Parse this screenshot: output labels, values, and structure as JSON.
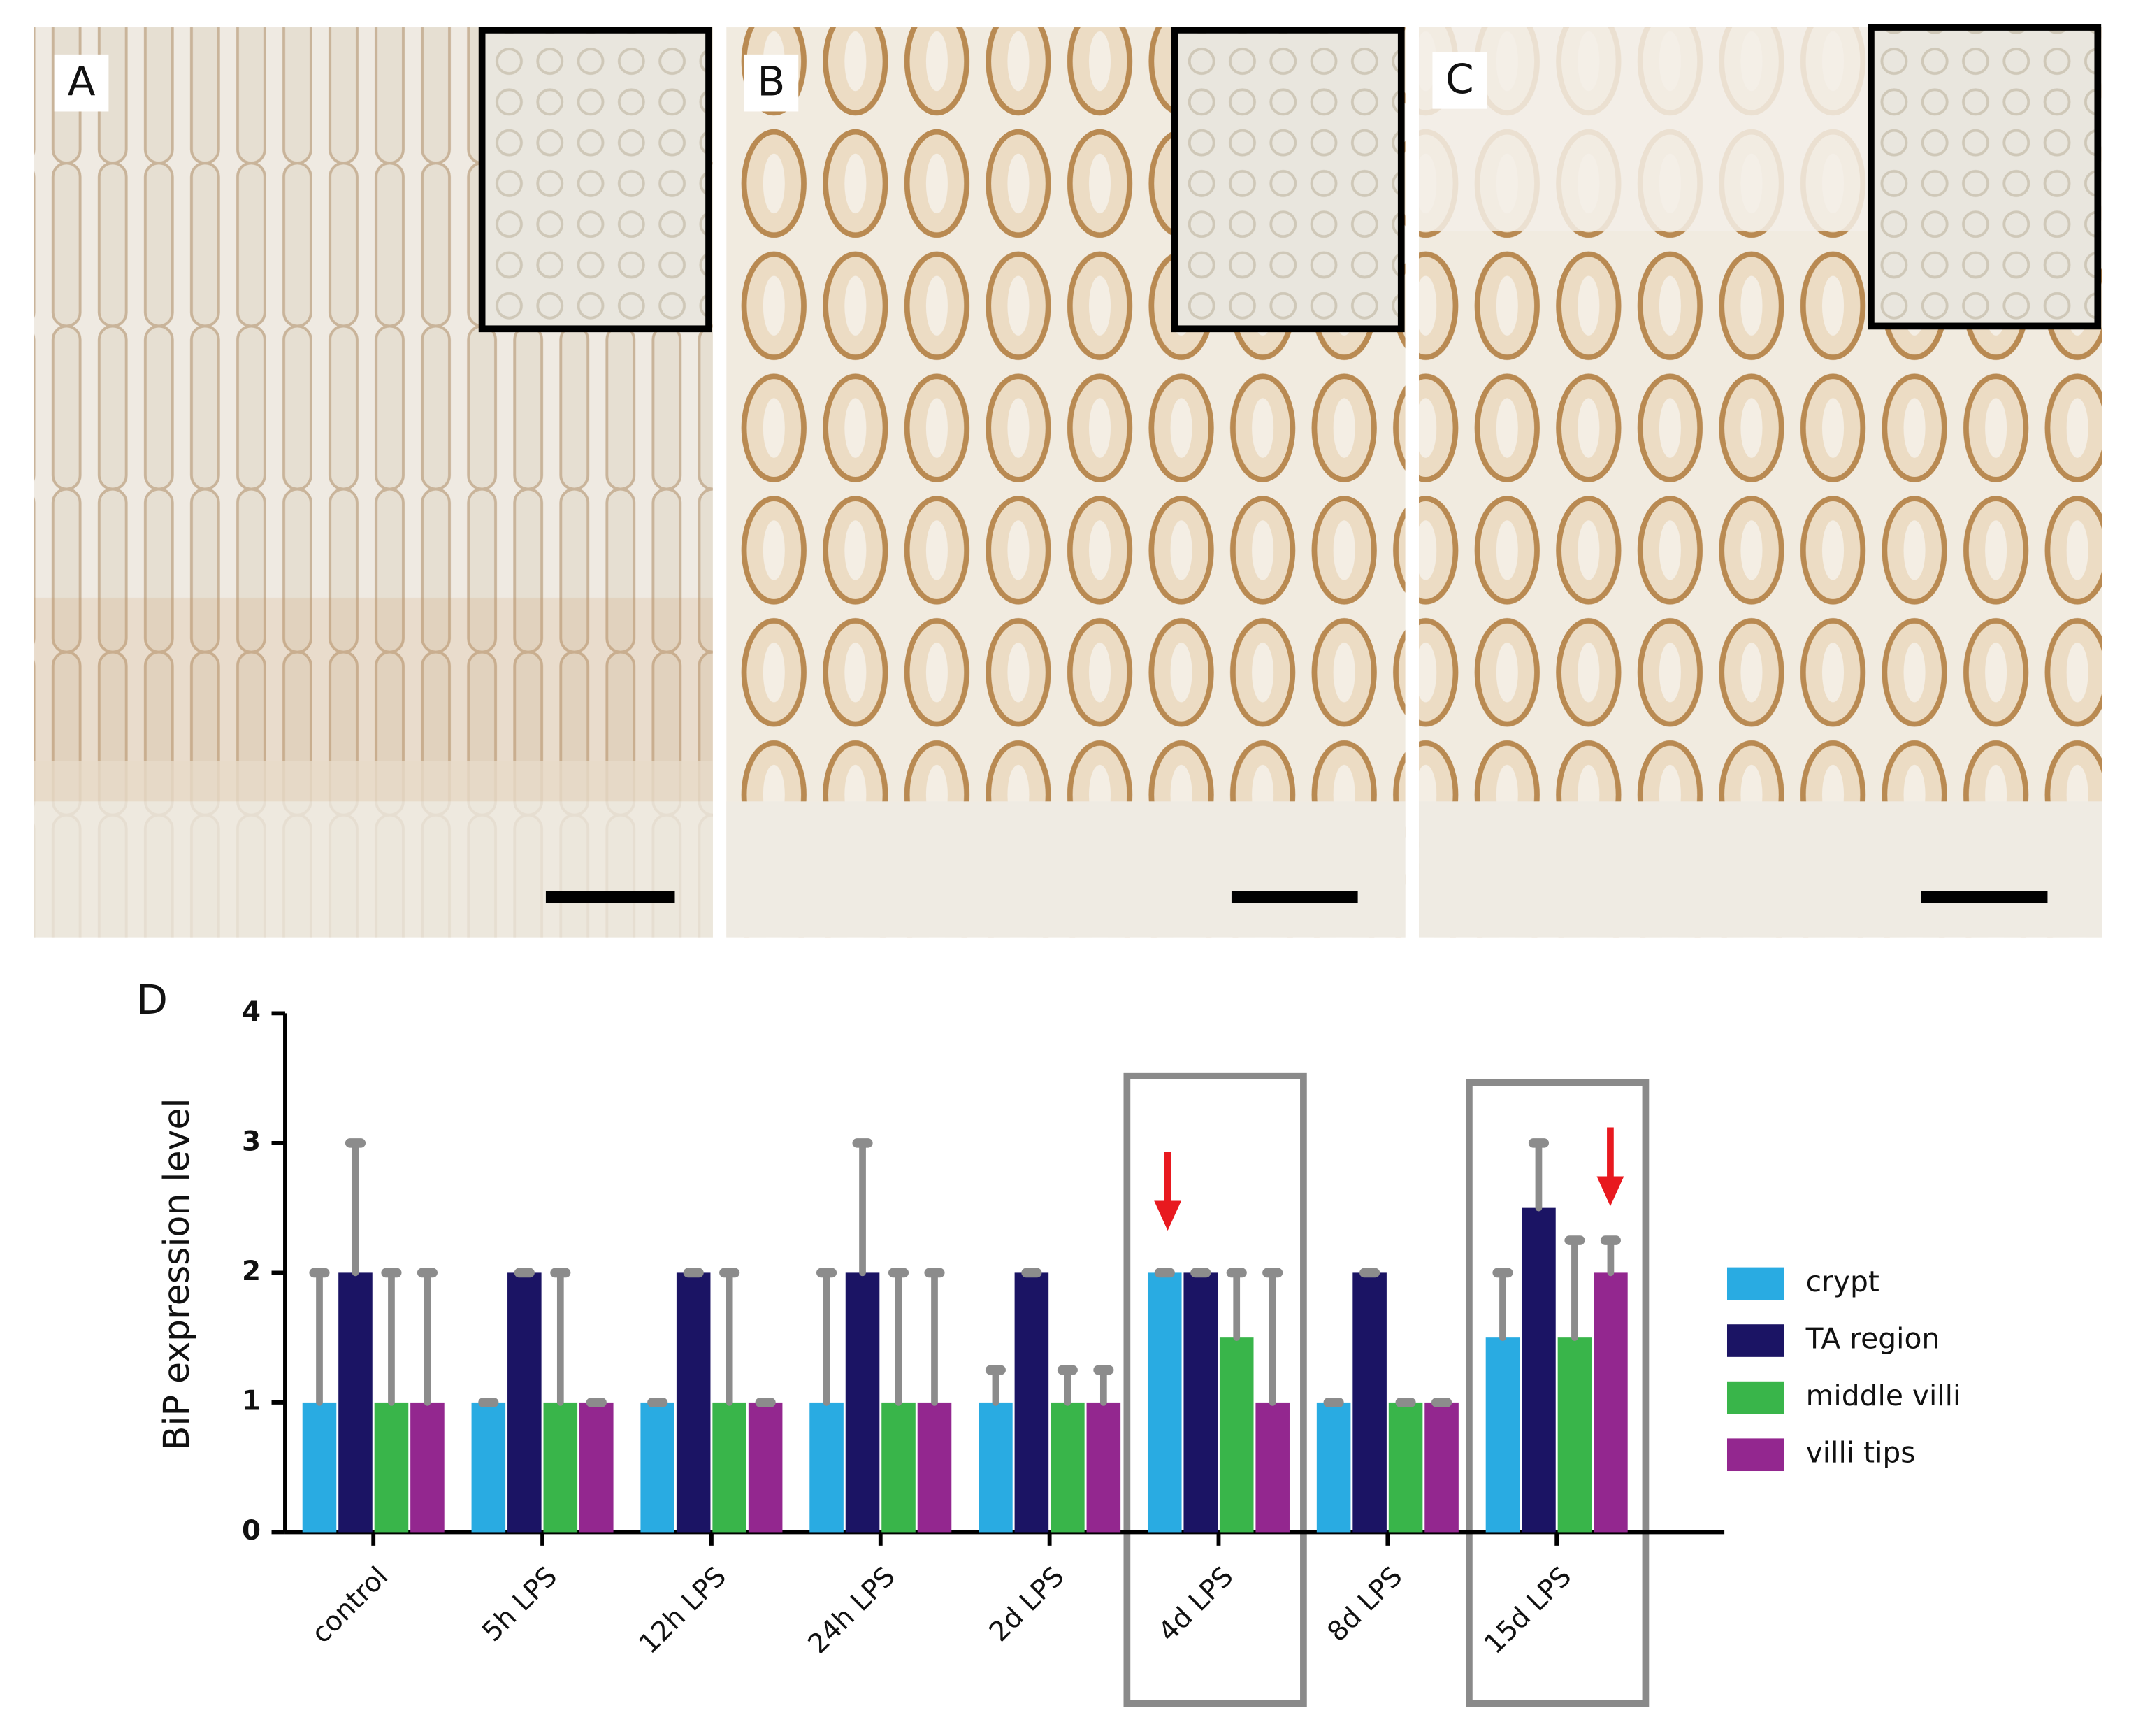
{
  "panels": [
    "A",
    "B",
    "C"
  ],
  "chart_data": {
    "type": "bar",
    "panel": "D",
    "ylabel": "BiP expression level",
    "categories": [
      "control",
      "5h LPS",
      "12h LPS",
      "24h LPS",
      "2d LPS",
      "4d LPS",
      "8d LPS",
      "15d LPS"
    ],
    "series": [
      {
        "name": "crypt",
        "color": "#29abe2",
        "values": [
          1,
          1,
          1,
          1,
          1,
          2,
          1,
          1.5
        ],
        "errors": [
          1,
          0,
          0,
          1,
          0.25,
          0,
          0,
          0.5
        ]
      },
      {
        "name": "TA region",
        "color": "#1b1464",
        "values": [
          2,
          2,
          2,
          2,
          2,
          2,
          2,
          2.5
        ],
        "errors": [
          1,
          0,
          0,
          1,
          0,
          0,
          0,
          0.5
        ]
      },
      {
        "name": "middle villi",
        "color": "#39b54a",
        "values": [
          1,
          1,
          1,
          1,
          1,
          1.5,
          1,
          1.5
        ],
        "errors": [
          1,
          1,
          1,
          1,
          0.25,
          0.5,
          0,
          0.75
        ]
      },
      {
        "name": "villi tips",
        "color": "#93278f",
        "values": [
          1,
          1,
          1,
          1,
          1,
          1,
          1,
          2
        ],
        "errors": [
          1,
          0,
          0,
          1,
          0.25,
          1,
          0,
          0.25
        ]
      }
    ],
    "ylim": [
      0,
      4
    ],
    "yticks": [
      0,
      1,
      2,
      3,
      4
    ],
    "error_bar_color": "#8c8c8c"
  }
}
